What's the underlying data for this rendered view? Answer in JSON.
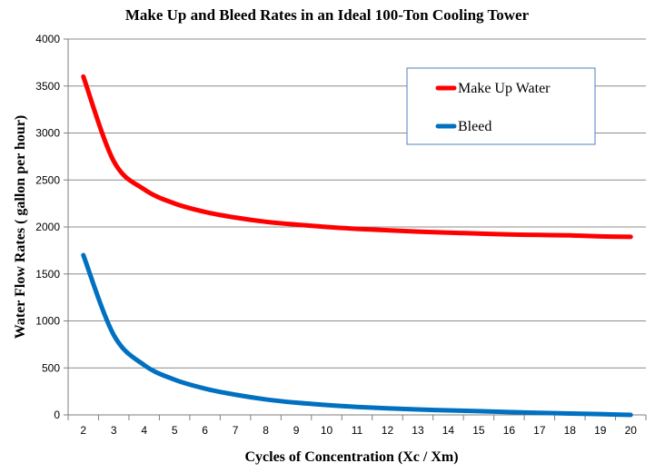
{
  "chart_data": {
    "type": "line",
    "title": "Make Up and Bleed Rates in an Ideal 100-Ton Cooling Tower",
    "xlabel": "Cycles of Concentration (Xc / Xm)",
    "ylabel": "Water Flow Rates ( gallon per hour)",
    "categories": [
      "2",
      "3",
      "4",
      "5",
      "6",
      "7",
      "8",
      "9",
      "10",
      "11",
      "12",
      "13",
      "14",
      "15",
      "16",
      "17",
      "18",
      "19",
      "20"
    ],
    "ylim": [
      0,
      4000
    ],
    "yticks": [
      0,
      500,
      1000,
      1500,
      2000,
      2500,
      3000,
      3500,
      4000
    ],
    "grid": true,
    "legend_position": "top-right",
    "series": [
      {
        "name": "Make Up Water",
        "color": "#ff0000",
        "values": [
          3600,
          2700,
          2400,
          2250,
          2160,
          2100,
          2055,
          2025,
          2000,
          1980,
          1965,
          1950,
          1940,
          1930,
          1920,
          1915,
          1910,
          1900,
          1895
        ]
      },
      {
        "name": "Bleed",
        "color": "#0070c0",
        "values": [
          1700,
          850,
          530,
          375,
          280,
          215,
          165,
          130,
          105,
          85,
          70,
          58,
          48,
          40,
          30,
          22,
          15,
          8,
          0
        ]
      }
    ]
  }
}
